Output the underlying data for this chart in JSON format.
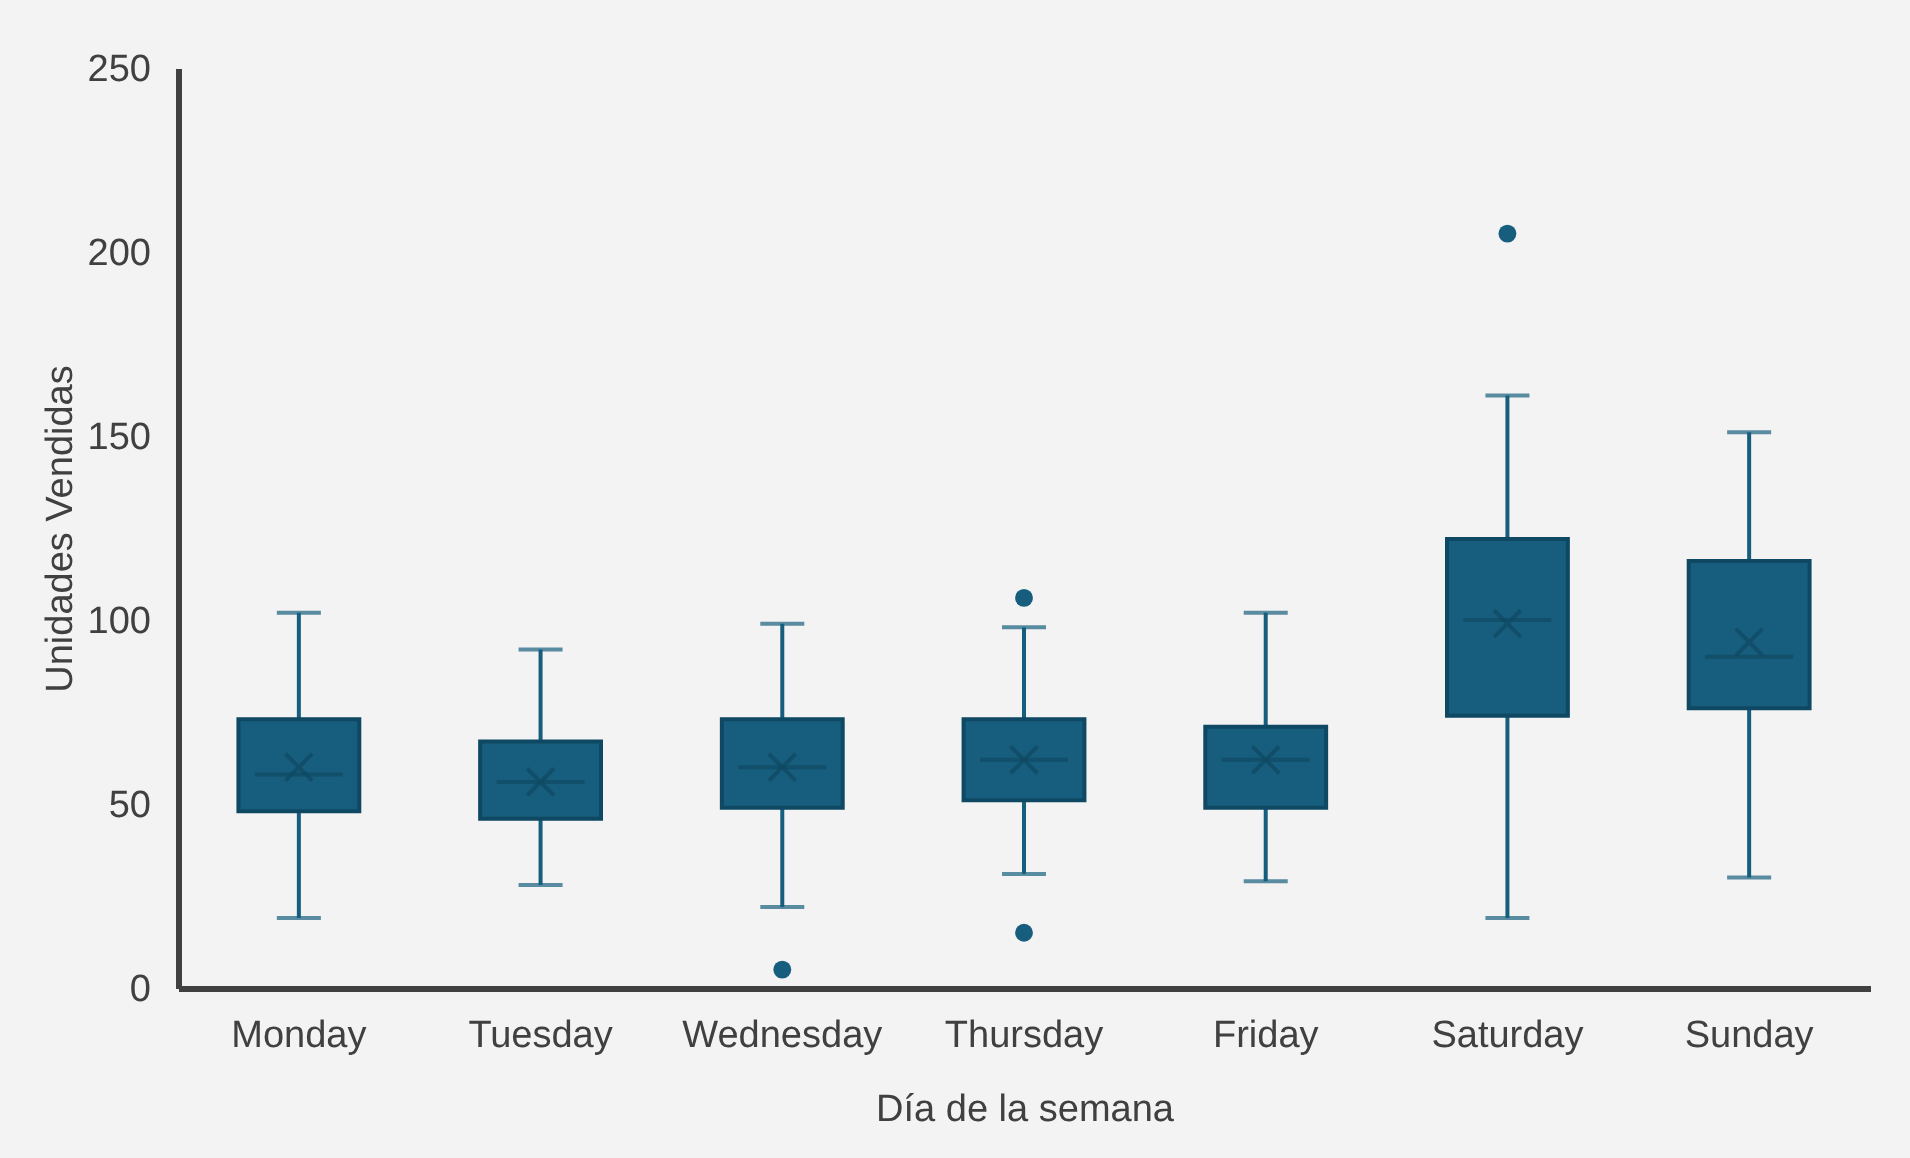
{
  "chart_data": {
    "type": "box",
    "xlabel": "Día de la semana",
    "ylabel": "Unidades Vendidas",
    "categories": [
      "Monday",
      "Tuesday",
      "Wednesday",
      "Thursday",
      "Friday",
      "Saturday",
      "Sunday"
    ],
    "color": "#175e7e",
    "boxes": [
      {
        "low": 19,
        "q1": 48,
        "median": 58,
        "q3": 73,
        "high": 102,
        "mean": 60
      },
      {
        "low": 28,
        "q1": 46,
        "median": 56,
        "q3": 67,
        "high": 92,
        "mean": 56
      },
      {
        "low": 22,
        "q1": 49,
        "median": 60,
        "q3": 73,
        "high": 99,
        "mean": 60,
        "outliers": [
          5
        ]
      },
      {
        "low": 31,
        "q1": 51,
        "median": 62,
        "q3": 73,
        "high": 98,
        "mean": 62,
        "outliers": [
          106,
          15
        ]
      },
      {
        "low": 29,
        "q1": 49,
        "median": 62,
        "q3": 71,
        "high": 102,
        "mean": 62
      },
      {
        "low": 19,
        "q1": 74,
        "median": 100,
        "q3": 122,
        "high": 161,
        "mean": 99,
        "outliers": [
          205
        ]
      },
      {
        "low": 30,
        "q1": 76,
        "median": 90,
        "q3": 116,
        "high": 151,
        "mean": 94
      }
    ],
    "ylim": [
      0,
      250
    ],
    "yticks": [
      0,
      50,
      100,
      150,
      200,
      250
    ],
    "grid": false
  }
}
